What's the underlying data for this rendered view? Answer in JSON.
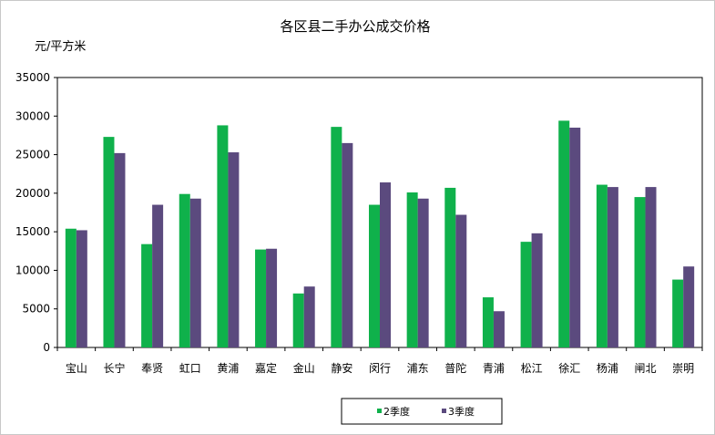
{
  "chart_data": {
    "type": "bar",
    "title": "各区县二手办公成交价格",
    "ylabel": "元/平方米",
    "xlabel": "",
    "ylim": [
      0,
      35000
    ],
    "yticks": [
      0,
      5000,
      10000,
      15000,
      20000,
      25000,
      30000,
      35000
    ],
    "grid": false,
    "legend_position": "bottom-center",
    "categories": [
      "宝山",
      "长宁",
      "奉贤",
      "虹口",
      "黄浦",
      "嘉定",
      "金山",
      "静安",
      "闵行",
      "浦东",
      "普陀",
      "青浦",
      "松江",
      "徐汇",
      "杨浦",
      "闸北",
      "崇明"
    ],
    "series": [
      {
        "name": "2季度",
        "color": "#0fb14b",
        "values": [
          15400,
          27300,
          13400,
          19900,
          28800,
          12700,
          7000,
          28600,
          18500,
          20100,
          20700,
          6500,
          13700,
          29400,
          21100,
          19500,
          8800
        ]
      },
      {
        "name": "3季度",
        "color": "#5b4a7e",
        "values": [
          15200,
          25200,
          18500,
          19300,
          25300,
          12800,
          7900,
          26500,
          21400,
          19300,
          17200,
          4700,
          14800,
          28500,
          20800,
          20800,
          10500
        ]
      }
    ]
  }
}
